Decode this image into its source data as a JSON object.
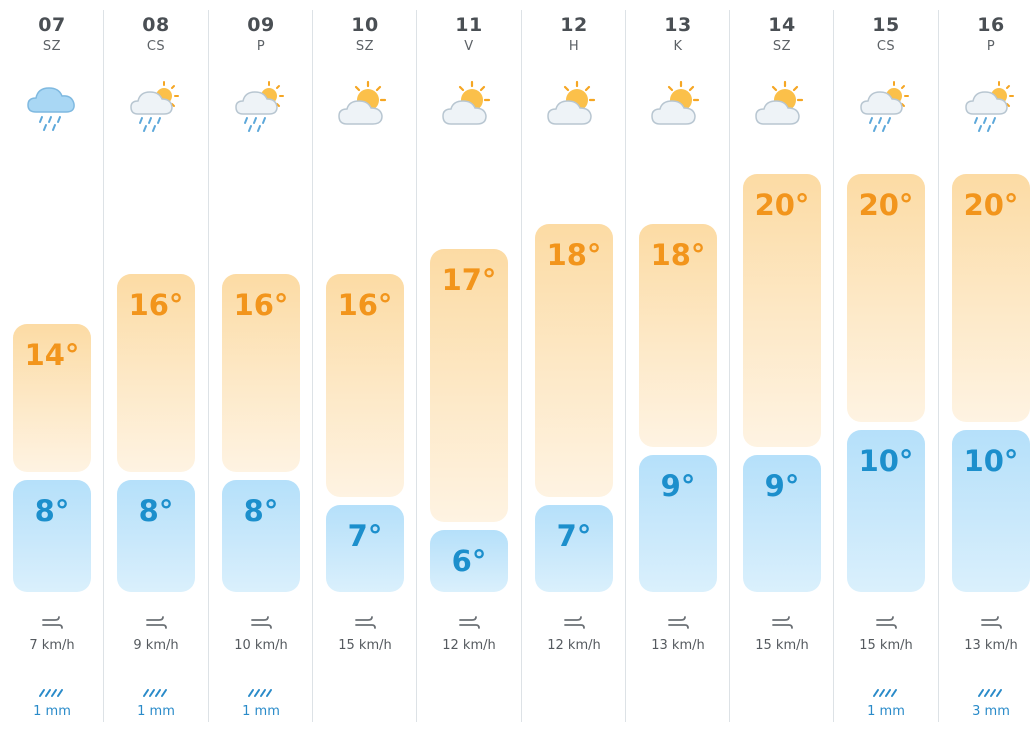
{
  "days": [
    {
      "day": "07",
      "weekday": "SZ",
      "icon": "rain-cloud-icon",
      "max": "14°",
      "min": "8°",
      "max_c": 14,
      "min_c": 8,
      "wind": "7 km/h",
      "rain": "1 mm"
    },
    {
      "day": "08",
      "weekday": "CS",
      "icon": "sun-cloud-rain-icon",
      "max": "16°",
      "min": "8°",
      "max_c": 16,
      "min_c": 8,
      "wind": "9 km/h",
      "rain": "1 mm"
    },
    {
      "day": "09",
      "weekday": "P",
      "icon": "sun-cloud-rain-icon",
      "max": "16°",
      "min": "8°",
      "max_c": 16,
      "min_c": 8,
      "wind": "10 km/h",
      "rain": "1 mm"
    },
    {
      "day": "10",
      "weekday": "SZ",
      "icon": "sun-cloud-icon",
      "max": "16°",
      "min": "7°",
      "max_c": 16,
      "min_c": 7,
      "wind": "15 km/h",
      "rain": ""
    },
    {
      "day": "11",
      "weekday": "V",
      "icon": "sun-cloud-icon",
      "max": "17°",
      "min": "6°",
      "max_c": 17,
      "min_c": 6,
      "wind": "12 km/h",
      "rain": ""
    },
    {
      "day": "12",
      "weekday": "H",
      "icon": "sun-cloud-icon",
      "max": "18°",
      "min": "7°",
      "max_c": 18,
      "min_c": 7,
      "wind": "12 km/h",
      "rain": ""
    },
    {
      "day": "13",
      "weekday": "K",
      "icon": "sun-cloud-icon",
      "max": "18°",
      "min": "9°",
      "max_c": 18,
      "min_c": 9,
      "wind": "13 km/h",
      "rain": ""
    },
    {
      "day": "14",
      "weekday": "SZ",
      "icon": "sun-cloud-icon",
      "max": "20°",
      "min": "9°",
      "max_c": 20,
      "min_c": 9,
      "wind": "15 km/h",
      "rain": ""
    },
    {
      "day": "15",
      "weekday": "CS",
      "icon": "sun-cloud-rain-icon",
      "max": "20°",
      "min": "10°",
      "max_c": 20,
      "min_c": 10,
      "wind": "15 km/h",
      "rain": "1 mm"
    },
    {
      "day": "16",
      "weekday": "P",
      "icon": "sun-cloud-rain-icon",
      "max": "20°",
      "min": "10°",
      "max_c": 20,
      "min_c": 10,
      "wind": "13 km/h",
      "rain": "3 mm"
    }
  ],
  "colors": {
    "max_text": "#f2951c",
    "min_text": "#1c8fcc",
    "rain_text": "#2a8bc9"
  }
}
